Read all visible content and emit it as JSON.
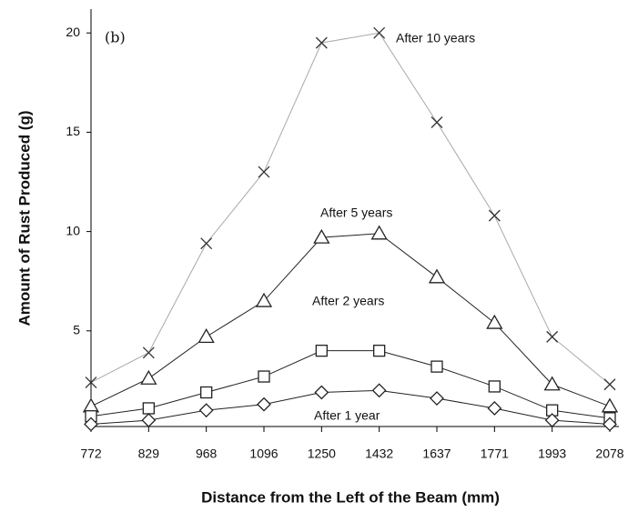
{
  "chart_data": {
    "type": "line",
    "panel_label": "(b)",
    "x_label": "Distance from the Left of the Beam (mm)",
    "y_label": "Amount of Rust Produced (g)",
    "categories": [
      "772",
      "829",
      "968",
      "1096",
      "1250",
      "1432",
      "1637",
      "1771",
      "1993",
      "2078"
    ],
    "series": [
      {
        "name": "After 10 years",
        "color": "#999999",
        "marker": "x",
        "values": [
          2.4,
          3.9,
          9.4,
          13.0,
          19.5,
          20.0,
          15.5,
          10.8,
          4.7,
          2.3
        ]
      },
      {
        "name": "After 5 years",
        "color": "#222222",
        "marker": "triangle",
        "values": [
          1.2,
          2.6,
          4.7,
          6.5,
          9.7,
          9.9,
          7.7,
          5.4,
          2.3,
          1.2
        ]
      },
      {
        "name": "After 2 years",
        "color": "#222222",
        "marker": "square",
        "values": [
          0.7,
          1.1,
          1.9,
          2.7,
          4.0,
          4.0,
          3.2,
          2.2,
          1.0,
          0.6
        ]
      },
      {
        "name": "After 1 year",
        "color": "#222222",
        "marker": "diamond",
        "values": [
          0.3,
          0.5,
          1.0,
          1.3,
          1.9,
          2.0,
          1.6,
          1.1,
          0.5,
          0.3
        ]
      }
    ],
    "ylim": [
      0,
      21.2
    ],
    "yticks": [
      5,
      10,
      15,
      20
    ],
    "grid": false
  }
}
